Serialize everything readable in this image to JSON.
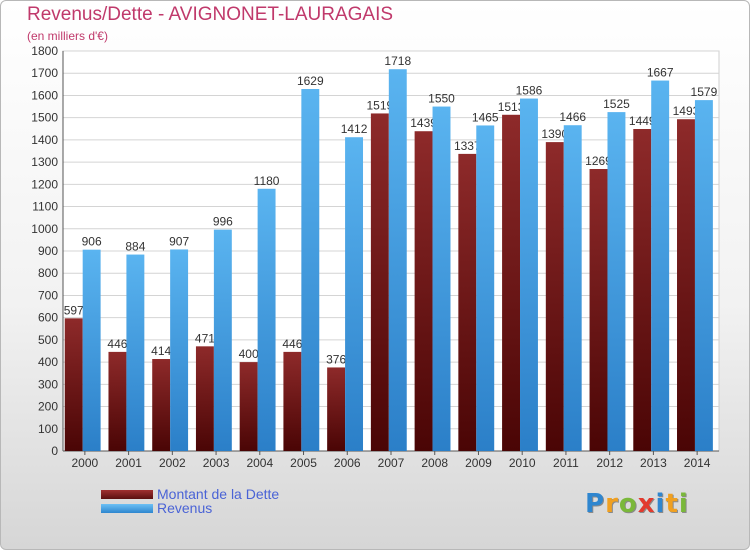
{
  "chart_data": {
    "type": "bar",
    "title": "Revenus/Dette - AVIGNONET-LAURAGAIS",
    "subtitle": "(en milliers d'€)",
    "categories": [
      "2000",
      "2001",
      "2002",
      "2003",
      "2004",
      "2005",
      "2006",
      "2007",
      "2008",
      "2009",
      "2010",
      "2011",
      "2012",
      "2013",
      "2014"
    ],
    "series": [
      {
        "name": "Montant de la Dette",
        "color": "#6b1515",
        "values": [
          597,
          446,
          414,
          471,
          400,
          446,
          376,
          1519,
          1439,
          1337,
          1513,
          1390,
          1269,
          1449,
          1493
        ],
        "labels": [
          "597",
          "446",
          "414",
          "471",
          "400",
          "446",
          "376",
          "1519",
          "1439",
          "1337",
          "1513",
          "1390",
          "1269",
          "1449",
          "1493"
        ]
      },
      {
        "name": "Revenus",
        "color": "#3d9ee6",
        "values": [
          906,
          884,
          907,
          996,
          1180,
          1629,
          1412,
          1718,
          1550,
          1465,
          1586,
          1466,
          1525,
          1667,
          1579
        ],
        "labels": [
          "906",
          "884",
          "907",
          "996",
          "1180",
          "1629",
          "1412",
          "1718",
          "1550",
          "1465",
          "1586",
          "1466",
          "1525",
          "1667",
          "1579"
        ]
      }
    ],
    "ylim": [
      0,
      1800
    ],
    "yticks": [
      0,
      100,
      200,
      300,
      400,
      500,
      600,
      700,
      800,
      900,
      1000,
      1100,
      1200,
      1300,
      1400,
      1500,
      1600,
      1700,
      1800
    ],
    "grid": true,
    "legend": "bottom-left"
  },
  "logo": {
    "text": "Proxiti",
    "letters": [
      {
        "ch": "P",
        "color": "#2f86cf"
      },
      {
        "ch": "r",
        "color": "#f0a020"
      },
      {
        "ch": "o",
        "color": "#7ab83a"
      },
      {
        "ch": "x",
        "color": "#e23a2e"
      },
      {
        "ch": "i",
        "color": "#2f86cf"
      },
      {
        "ch": "t",
        "color": "#f0a020"
      },
      {
        "ch": "i",
        "color": "#7ab83a"
      }
    ]
  }
}
